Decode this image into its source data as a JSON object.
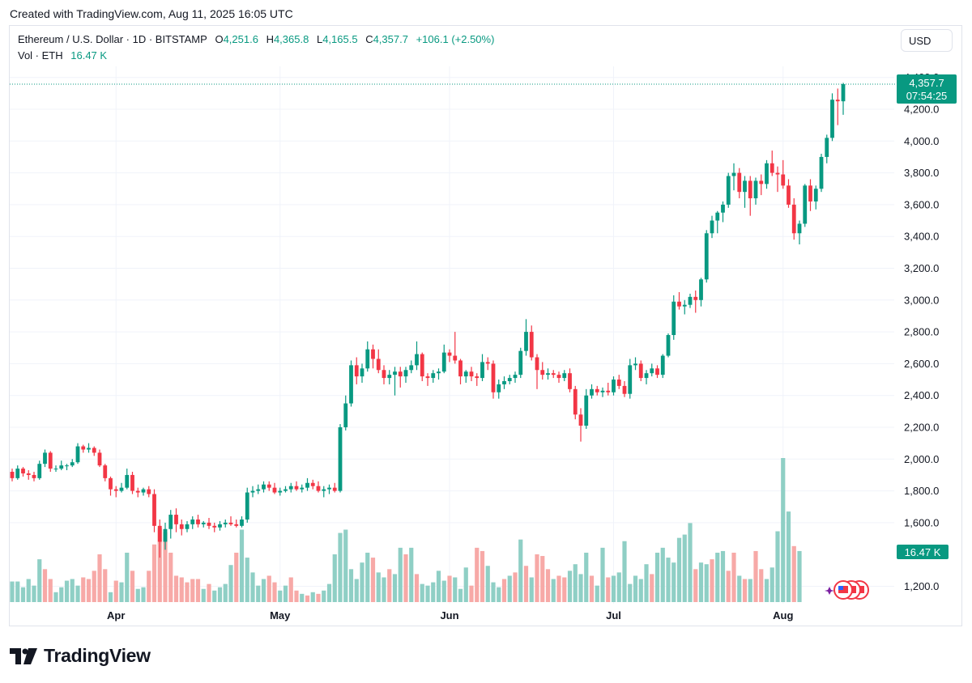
{
  "header": {
    "created_text": "Created with TradingView.com, Aug 11, 2025 16:05 UTC"
  },
  "legend": {
    "symbol": "Ethereum / U.S. Dollar · 1D · BITSTAMP",
    "open_label": "O",
    "open": "4,251.6",
    "high_label": "H",
    "high": "4,365.8",
    "low_label": "L",
    "low": "4,165.5",
    "close_label": "C",
    "close": "4,357.7",
    "change": "+106.1 (+2.50%)",
    "vol_label": "Vol · ETH",
    "vol_value": "16.47 K"
  },
  "currency_button": "USD",
  "price_tag": {
    "price": "4,357.7",
    "countdown": "07:54:25"
  },
  "volume_tag": "16.47 K",
  "brand": {
    "name": "TradingView"
  },
  "colors": {
    "up": "#089981",
    "down": "#f23645",
    "vol_up": "#8fcfc5",
    "vol_down": "#f7a9a7",
    "grid": "#f0f3fa",
    "text": "#131722"
  },
  "chart_data": {
    "type": "candlestick",
    "yticks": [
      "4,400.0",
      "4,200.0",
      "4,000.0",
      "3,800.0",
      "3,600.0",
      "3,400.0",
      "3,200.0",
      "3,000.0",
      "2,800.0",
      "2,600.0",
      "2,400.0",
      "2,200.0",
      "2,000.0",
      "1,800.0",
      "1,600.0",
      "1,200.0"
    ],
    "ytick_values": [
      4400,
      4200,
      4000,
      3800,
      3600,
      3400,
      3200,
      3000,
      2800,
      2600,
      2400,
      2200,
      2000,
      1800,
      1600,
      1200
    ],
    "xticks": [
      "Apr",
      "May",
      "Jun",
      "Jul",
      "Aug"
    ],
    "xtick_dates": [
      "2025-04-01",
      "2025-05-01",
      "2025-06-01",
      "2025-07-01",
      "2025-08-01"
    ],
    "ylim": [
      1100,
      4450
    ],
    "first_date": "2025-03-13",
    "last_date": "2025-08-11",
    "grid": true,
    "current_price": 4357.7,
    "ohlc": [
      [
        1920,
        1940,
        1860,
        1880
      ],
      [
        1880,
        1960,
        1870,
        1940
      ],
      [
        1940,
        1950,
        1890,
        1910
      ],
      [
        1910,
        1930,
        1870,
        1900
      ],
      [
        1900,
        1920,
        1860,
        1880
      ],
      [
        1880,
        1990,
        1870,
        1970
      ],
      [
        1970,
        2060,
        1950,
        2040
      ],
      [
        2040,
        2050,
        1920,
        1940
      ],
      [
        1940,
        1960,
        1920,
        1940
      ],
      [
        1940,
        1990,
        1930,
        1960
      ],
      [
        1960,
        1970,
        1930,
        1960
      ],
      [
        1960,
        2000,
        1950,
        1980
      ],
      [
        1980,
        2100,
        1970,
        2080
      ],
      [
        2080,
        2090,
        2040,
        2060
      ],
      [
        2060,
        2100,
        2040,
        2070
      ],
      [
        2070,
        2080,
        2020,
        2040
      ],
      [
        2040,
        2060,
        1950,
        1960
      ],
      [
        1960,
        1970,
        1860,
        1880
      ],
      [
        1880,
        1890,
        1770,
        1810
      ],
      [
        1810,
        1830,
        1760,
        1800
      ],
      [
        1800,
        1850,
        1790,
        1820
      ],
      [
        1820,
        1940,
        1810,
        1900
      ],
      [
        1900,
        1920,
        1780,
        1800
      ],
      [
        1800,
        1820,
        1760,
        1790
      ],
      [
        1790,
        1820,
        1770,
        1810
      ],
      [
        1810,
        1830,
        1760,
        1780
      ],
      [
        1780,
        1810,
        1540,
        1580
      ],
      [
        1580,
        1620,
        1380,
        1480
      ],
      [
        1480,
        1600,
        1430,
        1560
      ],
      [
        1560,
        1680,
        1500,
        1650
      ],
      [
        1650,
        1690,
        1540,
        1590
      ],
      [
        1590,
        1620,
        1520,
        1560
      ],
      [
        1560,
        1610,
        1540,
        1590
      ],
      [
        1590,
        1640,
        1560,
        1620
      ],
      [
        1620,
        1650,
        1570,
        1590
      ],
      [
        1590,
        1610,
        1570,
        1600
      ],
      [
        1600,
        1630,
        1560,
        1580
      ],
      [
        1580,
        1600,
        1540,
        1570
      ],
      [
        1570,
        1610,
        1550,
        1590
      ],
      [
        1590,
        1620,
        1570,
        1600
      ],
      [
        1600,
        1640,
        1580,
        1590
      ],
      [
        1590,
        1620,
        1570,
        1580
      ],
      [
        1580,
        1640,
        1570,
        1620
      ],
      [
        1620,
        1820,
        1600,
        1790
      ],
      [
        1790,
        1830,
        1760,
        1800
      ],
      [
        1800,
        1840,
        1780,
        1810
      ],
      [
        1810,
        1860,
        1790,
        1840
      ],
      [
        1840,
        1860,
        1800,
        1820
      ],
      [
        1820,
        1850,
        1780,
        1790
      ],
      [
        1790,
        1820,
        1770,
        1800
      ],
      [
        1800,
        1830,
        1790,
        1810
      ],
      [
        1810,
        1850,
        1790,
        1830
      ],
      [
        1830,
        1860,
        1800,
        1810
      ],
      [
        1810,
        1840,
        1790,
        1820
      ],
      [
        1820,
        1880,
        1800,
        1850
      ],
      [
        1850,
        1870,
        1810,
        1830
      ],
      [
        1830,
        1860,
        1790,
        1800
      ],
      [
        1800,
        1830,
        1760,
        1810
      ],
      [
        1810,
        1840,
        1780,
        1820
      ],
      [
        1820,
        1850,
        1790,
        1800
      ],
      [
        1800,
        2220,
        1790,
        2200
      ],
      [
        2200,
        2400,
        2180,
        2350
      ],
      [
        2350,
        2620,
        2330,
        2590
      ],
      [
        2590,
        2640,
        2470,
        2520
      ],
      [
        2520,
        2600,
        2480,
        2570
      ],
      [
        2570,
        2740,
        2550,
        2690
      ],
      [
        2690,
        2720,
        2570,
        2630
      ],
      [
        2630,
        2690,
        2540,
        2560
      ],
      [
        2560,
        2590,
        2470,
        2510
      ],
      [
        2510,
        2560,
        2470,
        2530
      ],
      [
        2530,
        2580,
        2400,
        2550
      ],
      [
        2550,
        2580,
        2450,
        2520
      ],
      [
        2520,
        2580,
        2480,
        2560
      ],
      [
        2560,
        2620,
        2540,
        2590
      ],
      [
        2590,
        2740,
        2560,
        2660
      ],
      [
        2660,
        2670,
        2490,
        2520
      ],
      [
        2520,
        2540,
        2460,
        2510
      ],
      [
        2510,
        2560,
        2480,
        2540
      ],
      [
        2540,
        2570,
        2500,
        2550
      ],
      [
        2550,
        2720,
        2540,
        2670
      ],
      [
        2670,
        2690,
        2610,
        2650
      ],
      [
        2650,
        2800,
        2600,
        2620
      ],
      [
        2620,
        2630,
        2470,
        2520
      ],
      [
        2520,
        2560,
        2480,
        2550
      ],
      [
        2550,
        2580,
        2490,
        2520
      ],
      [
        2520,
        2540,
        2460,
        2510
      ],
      [
        2510,
        2660,
        2490,
        2610
      ],
      [
        2610,
        2640,
        2560,
        2600
      ],
      [
        2600,
        2620,
        2380,
        2420
      ],
      [
        2420,
        2500,
        2380,
        2470
      ],
      [
        2470,
        2520,
        2440,
        2490
      ],
      [
        2490,
        2530,
        2470,
        2510
      ],
      [
        2510,
        2550,
        2480,
        2530
      ],
      [
        2530,
        2700,
        2510,
        2680
      ],
      [
        2680,
        2880,
        2650,
        2800
      ],
      [
        2800,
        2840,
        2620,
        2640
      ],
      [
        2640,
        2660,
        2440,
        2560
      ],
      [
        2560,
        2610,
        2500,
        2530
      ],
      [
        2530,
        2570,
        2500,
        2540
      ],
      [
        2540,
        2560,
        2510,
        2530
      ],
      [
        2530,
        2550,
        2480,
        2510
      ],
      [
        2510,
        2560,
        2490,
        2540
      ],
      [
        2540,
        2570,
        2420,
        2440
      ],
      [
        2440,
        2460,
        2250,
        2280
      ],
      [
        2280,
        2320,
        2110,
        2210
      ],
      [
        2210,
        2440,
        2190,
        2400
      ],
      [
        2400,
        2470,
        2380,
        2440
      ],
      [
        2440,
        2460,
        2400,
        2420
      ],
      [
        2420,
        2450,
        2390,
        2430
      ],
      [
        2430,
        2480,
        2400,
        2420
      ],
      [
        2420,
        2520,
        2400,
        2500
      ],
      [
        2500,
        2530,
        2440,
        2460
      ],
      [
        2460,
        2490,
        2390,
        2410
      ],
      [
        2410,
        2630,
        2380,
        2590
      ],
      [
        2590,
        2640,
        2560,
        2600
      ],
      [
        2600,
        2620,
        2490,
        2510
      ],
      [
        2510,
        2560,
        2470,
        2540
      ],
      [
        2540,
        2600,
        2520,
        2570
      ],
      [
        2570,
        2590,
        2510,
        2530
      ],
      [
        2530,
        2660,
        2510,
        2650
      ],
      [
        2650,
        2790,
        2640,
        2780
      ],
      [
        2780,
        3030,
        2750,
        2990
      ],
      [
        2990,
        3050,
        2940,
        2960
      ],
      [
        2960,
        3000,
        2910,
        2970
      ],
      [
        2970,
        3040,
        2950,
        3020
      ],
      [
        3020,
        3060,
        2920,
        3000
      ],
      [
        3000,
        3140,
        2960,
        3130
      ],
      [
        3130,
        3440,
        3110,
        3420
      ],
      [
        3420,
        3530,
        3390,
        3500
      ],
      [
        3500,
        3560,
        3420,
        3550
      ],
      [
        3550,
        3620,
        3490,
        3600
      ],
      [
        3600,
        3800,
        3580,
        3780
      ],
      [
        3780,
        3860,
        3690,
        3800
      ],
      [
        3800,
        3830,
        3640,
        3680
      ],
      [
        3680,
        3780,
        3580,
        3750
      ],
      [
        3750,
        3780,
        3530,
        3640
      ],
      [
        3640,
        3770,
        3600,
        3750
      ],
      [
        3750,
        3790,
        3660,
        3730
      ],
      [
        3730,
        3880,
        3700,
        3860
      ],
      [
        3860,
        3940,
        3780,
        3800
      ],
      [
        3800,
        3840,
        3680,
        3790
      ],
      [
        3790,
        3880,
        3700,
        3720
      ],
      [
        3720,
        3760,
        3580,
        3600
      ],
      [
        3600,
        3640,
        3380,
        3420
      ],
      [
        3420,
        3500,
        3350,
        3480
      ],
      [
        3480,
        3730,
        3460,
        3720
      ],
      [
        3720,
        3760,
        3560,
        3620
      ],
      [
        3620,
        3720,
        3570,
        3700
      ],
      [
        3700,
        3920,
        3680,
        3900
      ],
      [
        3900,
        4040,
        3860,
        4020
      ],
      [
        4020,
        4300,
        4000,
        4260
      ],
      [
        4260,
        4330,
        4100,
        4250
      ],
      [
        4250,
        4366,
        4165,
        4357.7
      ]
    ],
    "volume": [
      [
        25,
        1
      ],
      [
        25,
        1
      ],
      [
        18,
        1
      ],
      [
        28,
        1
      ],
      [
        20,
        1
      ],
      [
        52,
        1
      ],
      [
        40,
        0
      ],
      [
        28,
        0
      ],
      [
        12,
        1
      ],
      [
        18,
        1
      ],
      [
        26,
        1
      ],
      [
        28,
        1
      ],
      [
        20,
        1
      ],
      [
        30,
        0
      ],
      [
        28,
        0
      ],
      [
        38,
        0
      ],
      [
        58,
        0
      ],
      [
        40,
        0
      ],
      [
        12,
        1
      ],
      [
        26,
        0
      ],
      [
        24,
        1
      ],
      [
        60,
        1
      ],
      [
        38,
        0
      ],
      [
        16,
        1
      ],
      [
        18,
        1
      ],
      [
        38,
        0
      ],
      [
        70,
        0
      ],
      [
        90,
        0
      ],
      [
        85,
        0
      ],
      [
        60,
        0
      ],
      [
        32,
        0
      ],
      [
        30,
        0
      ],
      [
        24,
        0
      ],
      [
        28,
        0
      ],
      [
        28,
        0
      ],
      [
        16,
        1
      ],
      [
        22,
        0
      ],
      [
        14,
        1
      ],
      [
        18,
        1
      ],
      [
        22,
        1
      ],
      [
        45,
        1
      ],
      [
        60,
        0
      ],
      [
        88,
        1
      ],
      [
        54,
        1
      ],
      [
        36,
        1
      ],
      [
        20,
        1
      ],
      [
        28,
        1
      ],
      [
        32,
        0
      ],
      [
        24,
        0
      ],
      [
        14,
        1
      ],
      [
        20,
        1
      ],
      [
        30,
        0
      ],
      [
        14,
        0
      ],
      [
        10,
        1
      ],
      [
        8,
        0
      ],
      [
        12,
        1
      ],
      [
        10,
        0
      ],
      [
        14,
        1
      ],
      [
        22,
        1
      ],
      [
        58,
        1
      ],
      [
        84,
        1
      ],
      [
        88,
        1
      ],
      [
        40,
        1
      ],
      [
        28,
        1
      ],
      [
        48,
        1
      ],
      [
        60,
        1
      ],
      [
        54,
        0
      ],
      [
        36,
        1
      ],
      [
        30,
        1
      ],
      [
        40,
        0
      ],
      [
        34,
        1
      ],
      [
        66,
        1
      ],
      [
        58,
        0
      ],
      [
        66,
        1
      ],
      [
        34,
        0
      ],
      [
        22,
        1
      ],
      [
        20,
        1
      ],
      [
        24,
        1
      ],
      [
        38,
        1
      ],
      [
        26,
        1
      ],
      [
        32,
        0
      ],
      [
        30,
        1
      ],
      [
        16,
        1
      ],
      [
        42,
        1
      ],
      [
        20,
        0
      ],
      [
        66,
        0
      ],
      [
        62,
        0
      ],
      [
        44,
        1
      ],
      [
        24,
        1
      ],
      [
        18,
        1
      ],
      [
        28,
        0
      ],
      [
        32,
        1
      ],
      [
        36,
        0
      ],
      [
        76,
        1
      ],
      [
        44,
        0
      ],
      [
        30,
        1
      ],
      [
        58,
        0
      ],
      [
        56,
        0
      ],
      [
        40,
        0
      ],
      [
        28,
        1
      ],
      [
        32,
        0
      ],
      [
        30,
        0
      ],
      [
        38,
        1
      ],
      [
        46,
        1
      ],
      [
        34,
        1
      ],
      [
        60,
        1
      ],
      [
        32,
        0
      ],
      [
        20,
        1
      ],
      [
        66,
        1
      ],
      [
        30,
        0
      ],
      [
        32,
        1
      ],
      [
        36,
        1
      ],
      [
        74,
        1
      ],
      [
        22,
        1
      ],
      [
        32,
        1
      ],
      [
        28,
        1
      ],
      [
        46,
        1
      ],
      [
        34,
        0
      ],
      [
        60,
        1
      ],
      [
        66,
        1
      ],
      [
        54,
        1
      ],
      [
        48,
        1
      ],
      [
        78,
        1
      ],
      [
        82,
        1
      ],
      [
        96,
        1
      ],
      [
        40,
        0
      ],
      [
        48,
        1
      ],
      [
        46,
        1
      ],
      [
        52,
        0
      ],
      [
        60,
        1
      ],
      [
        62,
        1
      ],
      [
        38,
        0
      ],
      [
        60,
        0
      ],
      [
        32,
        1
      ],
      [
        28,
        0
      ],
      [
        28,
        1
      ],
      [
        62,
        0
      ],
      [
        40,
        0
      ],
      [
        28,
        1
      ],
      [
        42,
        1
      ],
      [
        86,
        1
      ],
      [
        175,
        1
      ],
      [
        110,
        1
      ],
      [
        68,
        0
      ],
      [
        62,
        1
      ]
    ]
  }
}
